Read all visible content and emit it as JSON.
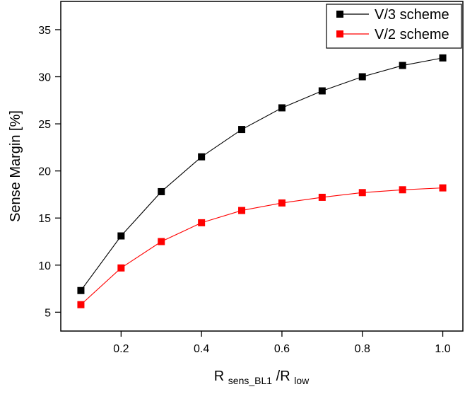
{
  "chart_data": {
    "type": "line",
    "title": "",
    "xlabel": {
      "main": "R",
      "sub1": "sens_BL1",
      "sep": "/R",
      "sub2": "low"
    },
    "ylabel": "Sense Margin [%]",
    "xlim": [
      0.05,
      1.05
    ],
    "ylim": [
      3,
      38
    ],
    "x_ticks": [
      0.2,
      0.4,
      0.6,
      0.8,
      1.0
    ],
    "x_tick_labels": [
      "0.2",
      "0.4",
      "0.6",
      "0.8",
      "1.0"
    ],
    "y_ticks": [
      5,
      10,
      15,
      20,
      25,
      30,
      35
    ],
    "y_tick_labels": [
      "5",
      "10",
      "15",
      "20",
      "25",
      "30",
      "35"
    ],
    "grid": false,
    "legend_position": "top-right",
    "x": [
      0.1,
      0.2,
      0.3,
      0.4,
      0.5,
      0.6,
      0.7,
      0.8,
      0.9,
      1.0
    ],
    "series": [
      {
        "name": "V/3 scheme",
        "color": "#000000",
        "marker": "square",
        "values": [
          7.3,
          13.1,
          17.8,
          21.5,
          24.4,
          26.7,
          28.5,
          30.0,
          31.2,
          32.0
        ]
      },
      {
        "name": "V/2 scheme",
        "color": "#ff0000",
        "marker": "square",
        "values": [
          5.8,
          9.7,
          12.5,
          14.5,
          15.8,
          16.6,
          17.2,
          17.7,
          18.0,
          18.2
        ]
      }
    ]
  }
}
